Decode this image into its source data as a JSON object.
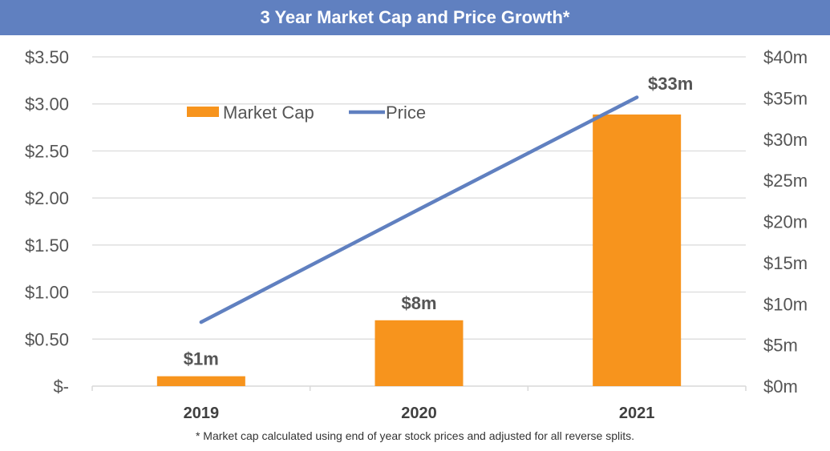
{
  "chart_data": {
    "type": "bar",
    "title": "3 Year Market Cap and Price Growth*",
    "categories": [
      "2019",
      "2020",
      "2021"
    ],
    "series": [
      {
        "name": "Market Cap",
        "type": "bar",
        "axis": "right",
        "values": [
          1.2,
          8,
          33
        ],
        "data_labels": [
          "$1m",
          "$8m",
          "$33m"
        ],
        "color": "#f7941d"
      },
      {
        "name": "Price",
        "type": "line",
        "axis": "left",
        "values": [
          0.68,
          1.88,
          3.07
        ],
        "color": "#6080c0"
      }
    ],
    "y_left": {
      "ylim": [
        0,
        3.5
      ],
      "ticks": [
        0,
        0.5,
        1,
        1.5,
        2,
        2.5,
        3,
        3.5
      ],
      "tick_labels": [
        "$-",
        "$0.50",
        "$1.00",
        "$1.50",
        "$2.00",
        "$2.50",
        "$3.00",
        "$3.50"
      ]
    },
    "y_right": {
      "ylim": [
        0,
        40
      ],
      "ticks": [
        0,
        5,
        10,
        15,
        20,
        25,
        30,
        35,
        40
      ],
      "tick_labels": [
        "$0m",
        "$5m",
        "$10m",
        "$15m",
        "$20m",
        "$25m",
        "$30m",
        "$35m",
        "$40m"
      ]
    },
    "legend": {
      "position": "top-left",
      "entries": [
        "Market Cap",
        "Price"
      ]
    },
    "grid": true,
    "footnote": "* Market cap calculated using end of year stock prices and adjusted for all reverse splits.",
    "colors": {
      "banner": "#6080c0",
      "gridline": "#d9d9d9"
    }
  }
}
